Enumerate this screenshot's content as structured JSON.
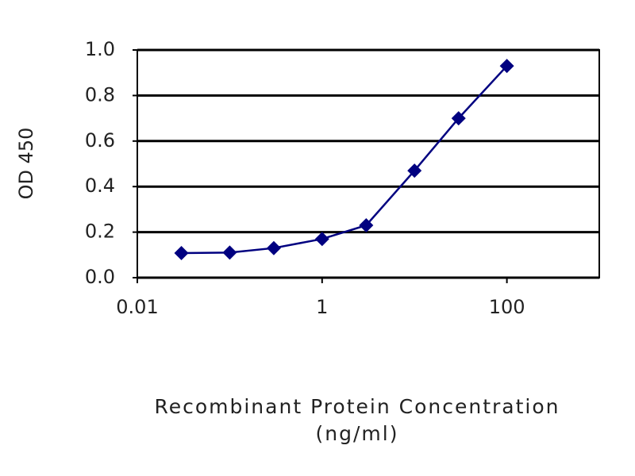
{
  "chart_data": {
    "type": "line",
    "ylabel": "OD 450",
    "xlabel": [
      "Recombinant Protein Concentration",
      "(ng/ml)"
    ],
    "x": [
      0.03,
      0.1,
      0.3,
      1,
      3,
      10,
      30,
      100
    ],
    "series": [
      {
        "color": "#000080",
        "values": [
          0.108,
          0.11,
          0.13,
          0.17,
          0.23,
          0.47,
          0.7,
          0.93
        ]
      }
    ],
    "xlim": [
      0.01,
      1000
    ],
    "xticks": [
      0.01,
      1,
      100
    ],
    "xscale": "log",
    "ylim": [
      0,
      1
    ],
    "yticks": [
      {
        "value": 0,
        "label": "0.0"
      },
      0.2,
      0.4,
      0.6,
      0.8,
      {
        "value": 1,
        "label": "1.0"
      }
    ],
    "grid": true,
    "marker": "diamond"
  }
}
